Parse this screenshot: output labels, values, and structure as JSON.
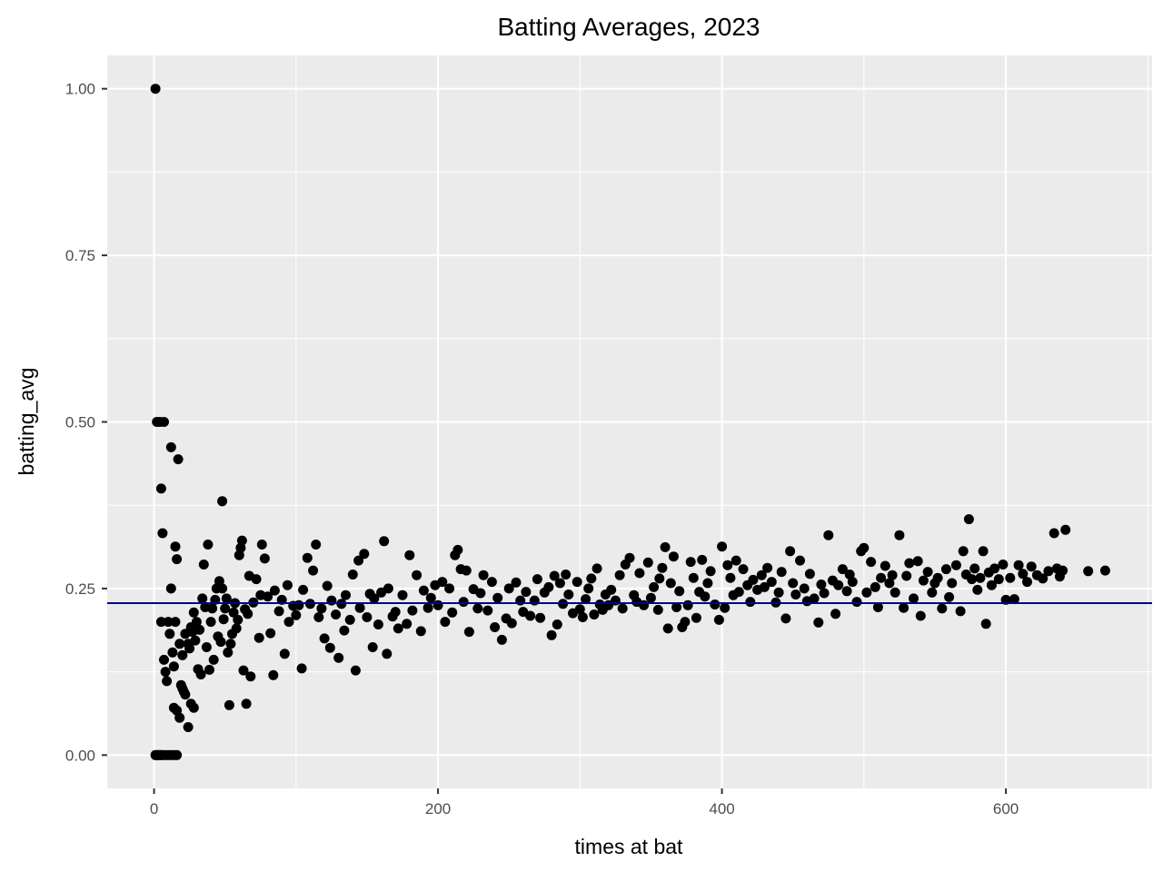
{
  "chart_data": {
    "type": "scatter",
    "title": "Batting Averages, 2023",
    "xlabel": "times at bat",
    "ylabel": "batting_avg",
    "xlim": [
      -33,
      703
    ],
    "ylim": [
      -0.05,
      1.05
    ],
    "x_ticks": [
      0,
      200,
      400,
      600
    ],
    "x_tick_labels": [
      "0",
      "200",
      "400",
      "600"
    ],
    "y_ticks": [
      0,
      0.25,
      0.5,
      0.75,
      1.0
    ],
    "y_tick_labels": [
      "0.00",
      "0.25",
      "0.50",
      "0.75",
      "1.00"
    ],
    "grid": true,
    "reference_line": {
      "orientation": "horizontal",
      "y": 0.228,
      "color": "#00008b"
    },
    "colors": {
      "panel": "#ebebeb",
      "grid_major": "#ffffff",
      "points": "#000000",
      "ticks": "#333333"
    },
    "points": [
      [
        1,
        1.0
      ],
      [
        2,
        0.5
      ],
      [
        4,
        0.5
      ],
      [
        7,
        0.5
      ],
      [
        5,
        0.4
      ],
      [
        6,
        0.333
      ],
      [
        12,
        0.462
      ],
      [
        17,
        0.444
      ],
      [
        48,
        0.381
      ],
      [
        1,
        0
      ],
      [
        2,
        0
      ],
      [
        3,
        0
      ],
      [
        4,
        0
      ],
      [
        5,
        0
      ],
      [
        6,
        0
      ],
      [
        8,
        0
      ],
      [
        10,
        0
      ],
      [
        12,
        0
      ],
      [
        14,
        0
      ],
      [
        16,
        0
      ],
      [
        5,
        0.2
      ],
      [
        7,
        0.143
      ],
      [
        8,
        0.125
      ],
      [
        9,
        0.111
      ],
      [
        10,
        0.2
      ],
      [
        11,
        0.182
      ],
      [
        12,
        0.25
      ],
      [
        13,
        0.154
      ],
      [
        14,
        0.133
      ],
      [
        15,
        0.2
      ],
      [
        14,
        0.071
      ],
      [
        16,
        0.067
      ],
      [
        18,
        0.056
      ],
      [
        20,
        0.1
      ],
      [
        22,
        0.091
      ],
      [
        24,
        0.042
      ],
      [
        26,
        0.077
      ],
      [
        28,
        0.071
      ],
      [
        19,
        0.105
      ],
      [
        21,
        0.095
      ],
      [
        15,
        0.313
      ],
      [
        16,
        0.294
      ],
      [
        18,
        0.167
      ],
      [
        20,
        0.15
      ],
      [
        22,
        0.182
      ],
      [
        24,
        0.167
      ],
      [
        25,
        0.16
      ],
      [
        26,
        0.192
      ],
      [
        27,
        0.185
      ],
      [
        28,
        0.214
      ],
      [
        29,
        0.172
      ],
      [
        30,
        0.2
      ],
      [
        31,
        0.129
      ],
      [
        32,
        0.188
      ],
      [
        33,
        0.121
      ],
      [
        34,
        0.235
      ],
      [
        35,
        0.286
      ],
      [
        36,
        0.222
      ],
      [
        37,
        0.162
      ],
      [
        38,
        0.316
      ],
      [
        39,
        0.128
      ],
      [
        40,
        0.2
      ],
      [
        41,
        0.22
      ],
      [
        42,
        0.143
      ],
      [
        43,
        0.233
      ],
      [
        44,
        0.25
      ],
      [
        45,
        0.178
      ],
      [
        46,
        0.261
      ],
      [
        47,
        0.17
      ],
      [
        48,
        0.25
      ],
      [
        49,
        0.204
      ],
      [
        50,
        0.22
      ],
      [
        51,
        0.235
      ],
      [
        52,
        0.154
      ],
      [
        53,
        0.075
      ],
      [
        54,
        0.167
      ],
      [
        55,
        0.182
      ],
      [
        56,
        0.214
      ],
      [
        57,
        0.228
      ],
      [
        58,
        0.19
      ],
      [
        59,
        0.203
      ],
      [
        60,
        0.3
      ],
      [
        61,
        0.311
      ],
      [
        62,
        0.322
      ],
      [
        63,
        0.127
      ],
      [
        64,
        0.219
      ],
      [
        65,
        0.077
      ],
      [
        66,
        0.212
      ],
      [
        67,
        0.269
      ],
      [
        68,
        0.118
      ],
      [
        70,
        0.229
      ],
      [
        72,
        0.264
      ],
      [
        74,
        0.176
      ],
      [
        75,
        0.24
      ],
      [
        76,
        0.316
      ],
      [
        78,
        0.295
      ],
      [
        80,
        0.238
      ],
      [
        82,
        0.183
      ],
      [
        84,
        0.12
      ],
      [
        85,
        0.247
      ],
      [
        88,
        0.216
      ],
      [
        90,
        0.233
      ],
      [
        92,
        0.152
      ],
      [
        94,
        0.255
      ],
      [
        95,
        0.2
      ],
      [
        98,
        0.224
      ],
      [
        100,
        0.21
      ],
      [
        102,
        0.225
      ],
      [
        104,
        0.13
      ],
      [
        105,
        0.248
      ],
      [
        108,
        0.296
      ],
      [
        110,
        0.227
      ],
      [
        112,
        0.277
      ],
      [
        114,
        0.316
      ],
      [
        116,
        0.207
      ],
      [
        118,
        0.22
      ],
      [
        120,
        0.175
      ],
      [
        122,
        0.254
      ],
      [
        124,
        0.161
      ],
      [
        125,
        0.232
      ],
      [
        128,
        0.211
      ],
      [
        130,
        0.146
      ],
      [
        132,
        0.227
      ],
      [
        134,
        0.187
      ],
      [
        135,
        0.24
      ],
      [
        138,
        0.203
      ],
      [
        140,
        0.271
      ],
      [
        142,
        0.127
      ],
      [
        144,
        0.292
      ],
      [
        145,
        0.221
      ],
      [
        148,
        0.302
      ],
      [
        150,
        0.207
      ],
      [
        152,
        0.242
      ],
      [
        154,
        0.162
      ],
      [
        155,
        0.235
      ],
      [
        158,
        0.196
      ],
      [
        160,
        0.244
      ],
      [
        162,
        0.321
      ],
      [
        164,
        0.152
      ],
      [
        165,
        0.25
      ],
      [
        168,
        0.208
      ],
      [
        170,
        0.215
      ],
      [
        172,
        0.19
      ],
      [
        175,
        0.24
      ],
      [
        178,
        0.197
      ],
      [
        180,
        0.3
      ],
      [
        182,
        0.217
      ],
      [
        185,
        0.27
      ],
      [
        188,
        0.186
      ],
      [
        190,
        0.247
      ],
      [
        193,
        0.221
      ],
      [
        195,
        0.236
      ],
      [
        198,
        0.255
      ],
      [
        200,
        0.225
      ],
      [
        203,
        0.26
      ],
      [
        205,
        0.2
      ],
      [
        208,
        0.25
      ],
      [
        210,
        0.214
      ],
      [
        212,
        0.3
      ],
      [
        214,
        0.308
      ],
      [
        216,
        0.279
      ],
      [
        218,
        0.23
      ],
      [
        220,
        0.277
      ],
      [
        222,
        0.185
      ],
      [
        225,
        0.249
      ],
      [
        228,
        0.22
      ],
      [
        230,
        0.243
      ],
      [
        232,
        0.27
      ],
      [
        235,
        0.217
      ],
      [
        238,
        0.26
      ],
      [
        240,
        0.192
      ],
      [
        242,
        0.236
      ],
      [
        245,
        0.173
      ],
      [
        248,
        0.205
      ],
      [
        250,
        0.25
      ],
      [
        252,
        0.198
      ],
      [
        255,
        0.259
      ],
      [
        258,
        0.232
      ],
      [
        260,
        0.215
      ],
      [
        262,
        0.245
      ],
      [
        265,
        0.209
      ],
      [
        268,
        0.232
      ],
      [
        270,
        0.264
      ],
      [
        272,
        0.206
      ],
      [
        275,
        0.244
      ],
      [
        278,
        0.252
      ],
      [
        280,
        0.18
      ],
      [
        282,
        0.269
      ],
      [
        284,
        0.196
      ],
      [
        286,
        0.258
      ],
      [
        288,
        0.227
      ],
      [
        290,
        0.271
      ],
      [
        292,
        0.241
      ],
      [
        295,
        0.213
      ],
      [
        298,
        0.26
      ],
      [
        300,
        0.219
      ],
      [
        302,
        0.207
      ],
      [
        304,
        0.234
      ],
      [
        306,
        0.25
      ],
      [
        308,
        0.265
      ],
      [
        310,
        0.211
      ],
      [
        312,
        0.28
      ],
      [
        314,
        0.226
      ],
      [
        316,
        0.218
      ],
      [
        318,
        0.241
      ],
      [
        320,
        0.225
      ],
      [
        322,
        0.248
      ],
      [
        325,
        0.232
      ],
      [
        328,
        0.27
      ],
      [
        330,
        0.22
      ],
      [
        332,
        0.286
      ],
      [
        335,
        0.296
      ],
      [
        338,
        0.24
      ],
      [
        340,
        0.23
      ],
      [
        342,
        0.273
      ],
      [
        345,
        0.225
      ],
      [
        348,
        0.289
      ],
      [
        350,
        0.236
      ],
      [
        352,
        0.252
      ],
      [
        355,
        0.218
      ],
      [
        356,
        0.265
      ],
      [
        358,
        0.281
      ],
      [
        360,
        0.312
      ],
      [
        362,
        0.19
      ],
      [
        364,
        0.258
      ],
      [
        366,
        0.298
      ],
      [
        368,
        0.222
      ],
      [
        370,
        0.246
      ],
      [
        372,
        0.192
      ],
      [
        374,
        0.2
      ],
      [
        376,
        0.225
      ],
      [
        378,
        0.29
      ],
      [
        380,
        0.266
      ],
      [
        382,
        0.206
      ],
      [
        384,
        0.245
      ],
      [
        386,
        0.293
      ],
      [
        388,
        0.238
      ],
      [
        390,
        0.258
      ],
      [
        392,
        0.276
      ],
      [
        395,
        0.226
      ],
      [
        398,
        0.203
      ],
      [
        400,
        0.313
      ],
      [
        402,
        0.221
      ],
      [
        404,
        0.285
      ],
      [
        406,
        0.266
      ],
      [
        408,
        0.24
      ],
      [
        410,
        0.292
      ],
      [
        412,
        0.245
      ],
      [
        415,
        0.279
      ],
      [
        418,
        0.255
      ],
      [
        420,
        0.23
      ],
      [
        422,
        0.263
      ],
      [
        425,
        0.248
      ],
      [
        428,
        0.27
      ],
      [
        430,
        0.252
      ],
      [
        432,
        0.281
      ],
      [
        435,
        0.26
      ],
      [
        438,
        0.229
      ],
      [
        440,
        0.244
      ],
      [
        442,
        0.275
      ],
      [
        445,
        0.205
      ],
      [
        448,
        0.306
      ],
      [
        450,
        0.258
      ],
      [
        452,
        0.241
      ],
      [
        455,
        0.292
      ],
      [
        458,
        0.25
      ],
      [
        460,
        0.231
      ],
      [
        462,
        0.272
      ],
      [
        465,
        0.235
      ],
      [
        468,
        0.199
      ],
      [
        470,
        0.256
      ],
      [
        472,
        0.243
      ],
      [
        475,
        0.33
      ],
      [
        478,
        0.262
      ],
      [
        480,
        0.212
      ],
      [
        482,
        0.255
      ],
      [
        485,
        0.279
      ],
      [
        488,
        0.246
      ],
      [
        490,
        0.271
      ],
      [
        492,
        0.26
      ],
      [
        495,
        0.23
      ],
      [
        498,
        0.306
      ],
      [
        500,
        0.311
      ],
      [
        502,
        0.244
      ],
      [
        505,
        0.29
      ],
      [
        508,
        0.252
      ],
      [
        510,
        0.222
      ],
      [
        512,
        0.266
      ],
      [
        515,
        0.284
      ],
      [
        518,
        0.258
      ],
      [
        520,
        0.27
      ],
      [
        522,
        0.244
      ],
      [
        525,
        0.33
      ],
      [
        528,
        0.221
      ],
      [
        530,
        0.269
      ],
      [
        532,
        0.288
      ],
      [
        535,
        0.235
      ],
      [
        538,
        0.291
      ],
      [
        540,
        0.209
      ],
      [
        542,
        0.262
      ],
      [
        545,
        0.275
      ],
      [
        548,
        0.244
      ],
      [
        550,
        0.258
      ],
      [
        552,
        0.266
      ],
      [
        555,
        0.22
      ],
      [
        558,
        0.279
      ],
      [
        560,
        0.237
      ],
      [
        562,
        0.258
      ],
      [
        565,
        0.285
      ],
      [
        568,
        0.216
      ],
      [
        570,
        0.306
      ],
      [
        572,
        0.271
      ],
      [
        574,
        0.354
      ],
      [
        576,
        0.264
      ],
      [
        578,
        0.28
      ],
      [
        580,
        0.248
      ],
      [
        582,
        0.266
      ],
      [
        584,
        0.306
      ],
      [
        586,
        0.197
      ],
      [
        588,
        0.274
      ],
      [
        590,
        0.255
      ],
      [
        592,
        0.28
      ],
      [
        595,
        0.264
      ],
      [
        598,
        0.286
      ],
      [
        600,
        0.233
      ],
      [
        603,
        0.266
      ],
      [
        606,
        0.234
      ],
      [
        609,
        0.285
      ],
      [
        612,
        0.272
      ],
      [
        615,
        0.26
      ],
      [
        618,
        0.283
      ],
      [
        622,
        0.27
      ],
      [
        626,
        0.265
      ],
      [
        630,
        0.276
      ],
      [
        634,
        0.333
      ],
      [
        636,
        0.28
      ],
      [
        638,
        0.268
      ],
      [
        640,
        0.277
      ],
      [
        642,
        0.338
      ],
      [
        658,
        0.276
      ],
      [
        670,
        0.277
      ]
    ]
  }
}
